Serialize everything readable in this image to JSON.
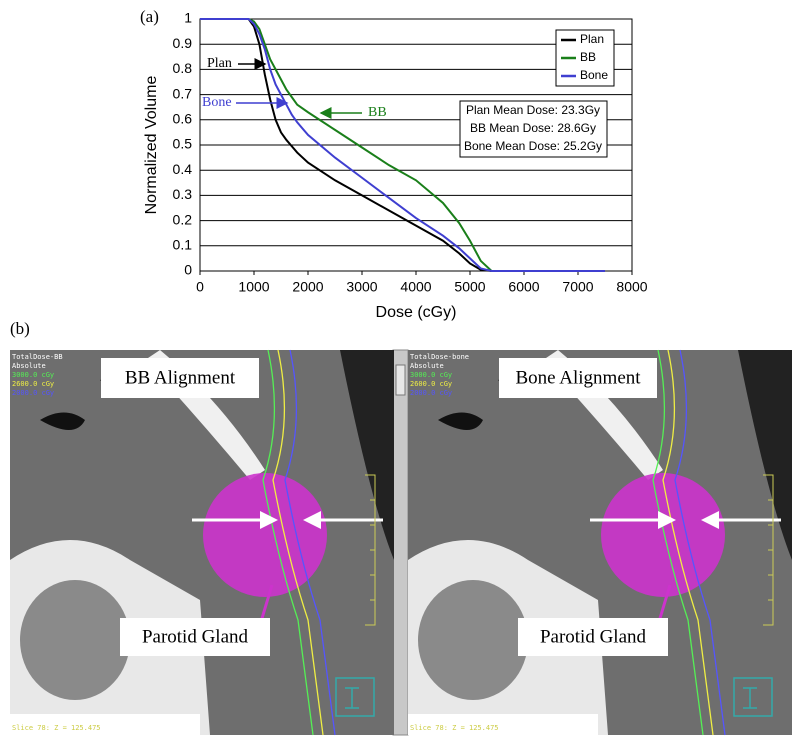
{
  "panel_a_label": "(a)",
  "chart_data": {
    "type": "line",
    "x_label": "Dose (cGy)",
    "y_label": "Normalized Volume",
    "x": [
      0,
      900,
      1000,
      1100,
      1200,
      1300,
      1400,
      1500,
      1600,
      1700,
      1800,
      2000,
      2500,
      3000,
      3500,
      4000,
      4500,
      4800,
      5000,
      5200,
      5400,
      7500
    ],
    "series": [
      {
        "name": "Plan",
        "color": "#000000",
        "values": [
          1,
          1,
          0.97,
          0.9,
          0.78,
          0.68,
          0.6,
          0.55,
          0.52,
          0.495,
          0.47,
          0.43,
          0.36,
          0.3,
          0.24,
          0.18,
          0.12,
          0.07,
          0.03,
          0.005,
          0,
          0
        ]
      },
      {
        "name": "BB",
        "color": "#1a7f1a",
        "values": [
          1,
          1,
          0.99,
          0.96,
          0.9,
          0.84,
          0.8,
          0.76,
          0.72,
          0.69,
          0.66,
          0.63,
          0.56,
          0.49,
          0.42,
          0.36,
          0.27,
          0.19,
          0.12,
          0.04,
          0,
          0
        ]
      },
      {
        "name": "Bone",
        "color": "#3f3fd0",
        "values": [
          1,
          1,
          0.98,
          0.94,
          0.88,
          0.8,
          0.74,
          0.7,
          0.66,
          0.62,
          0.59,
          0.54,
          0.45,
          0.37,
          0.29,
          0.21,
          0.14,
          0.09,
          0.05,
          0.01,
          0,
          0
        ]
      }
    ],
    "xlim": [
      0,
      8000
    ],
    "xticks": [
      0,
      1000,
      2000,
      3000,
      4000,
      5000,
      6000,
      7000,
      8000
    ],
    "ylim": [
      0,
      1
    ],
    "yticks": [
      0,
      0.1,
      0.2,
      0.3,
      0.4,
      0.5,
      0.6,
      0.7,
      0.8,
      0.9,
      1
    ],
    "grid": true,
    "legend": "upper right",
    "annotations": [
      "Plan",
      "Bone",
      "BB"
    ],
    "stats": [
      "Plan Mean Dose: 23.3Gy",
      "BB Mean Dose: 28.6Gy",
      "Bone Mean Dose: 25.2Gy"
    ]
  },
  "panel_b": {
    "label": "(b)",
    "images": [
      {
        "title": "BB Alignment",
        "overlay": [
          "TotalDose-BB",
          "Absolute",
          "3000.0 cGy",
          "2600.0 cGy",
          "2000.0 cGy"
        ],
        "annotation": "Parotid Gland",
        "footer": "Slice 78: Z = 125.475"
      },
      {
        "title": "Bone Alignment",
        "overlay": [
          "TotalDose-bone",
          "Absolute",
          "3000.0 cGy",
          "2600.0 cGy",
          "2000.0 cGy"
        ],
        "annotation": "Parotid Gland",
        "footer": "Slice 78: Z = 125.475"
      }
    ]
  }
}
